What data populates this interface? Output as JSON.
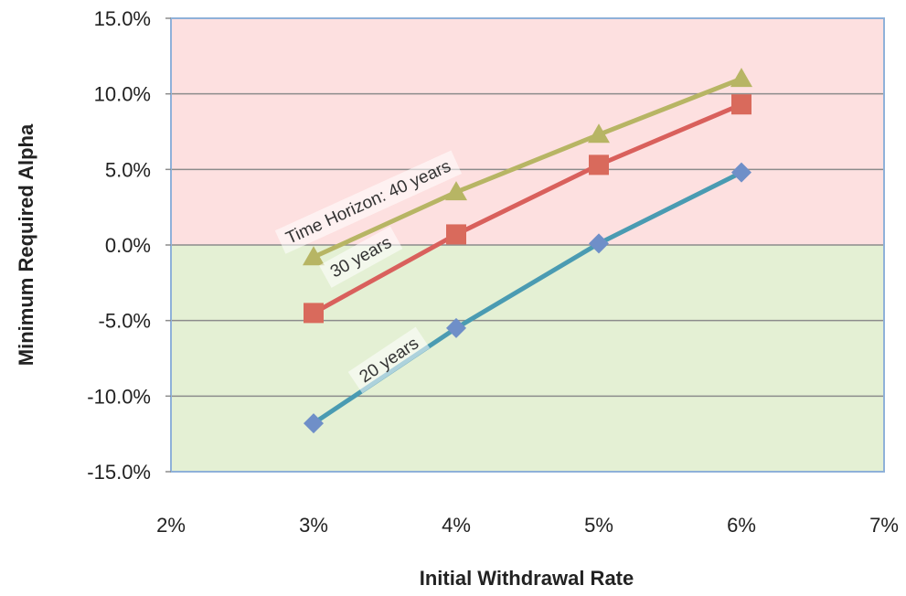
{
  "chart_data": {
    "type": "line",
    "xlabel": "Initial Withdrawal Rate",
    "ylabel": "Minimum Required  Alpha",
    "xlim": [
      2,
      7
    ],
    "ylim": [
      -15,
      15
    ],
    "x_ticks": [
      2,
      3,
      4,
      5,
      6,
      7
    ],
    "x_tick_labels": [
      "2%",
      "3%",
      "4%",
      "5%",
      "6%",
      "7%"
    ],
    "y_ticks": [
      15,
      10,
      5,
      0,
      -5,
      -10,
      -15
    ],
    "y_tick_labels": [
      "15.0%",
      "10.0%",
      "5.0%",
      "0.0%",
      "-5.0%",
      "-10.0%",
      "-15.0%"
    ],
    "grid": true,
    "background_regions": [
      {
        "from": 0,
        "to": 15,
        "color": "#fde0e0"
      },
      {
        "from": -15,
        "to": 0,
        "color": "#e4f0d4"
      }
    ],
    "series": [
      {
        "label_text": "Time Horizon: 40 years",
        "x": [
          3,
          4,
          5,
          6
        ],
        "values": [
          -0.8,
          3.5,
          7.3,
          11.0
        ],
        "color": "#b7b564",
        "marker": "triangle"
      },
      {
        "label_text": "30 years",
        "x": [
          3,
          4,
          5,
          6
        ],
        "values": [
          -4.5,
          0.7,
          5.3,
          9.3
        ],
        "color": "#d9605c",
        "marker_color": "#d96a5c",
        "marker": "square"
      },
      {
        "label_text": "20 years",
        "x": [
          3,
          4,
          5,
          6
        ],
        "values": [
          -11.8,
          -5.5,
          0.1,
          4.8
        ],
        "color": "#4a9bb2",
        "marker_color": "#6f8fc8",
        "marker": "diamond"
      }
    ]
  }
}
